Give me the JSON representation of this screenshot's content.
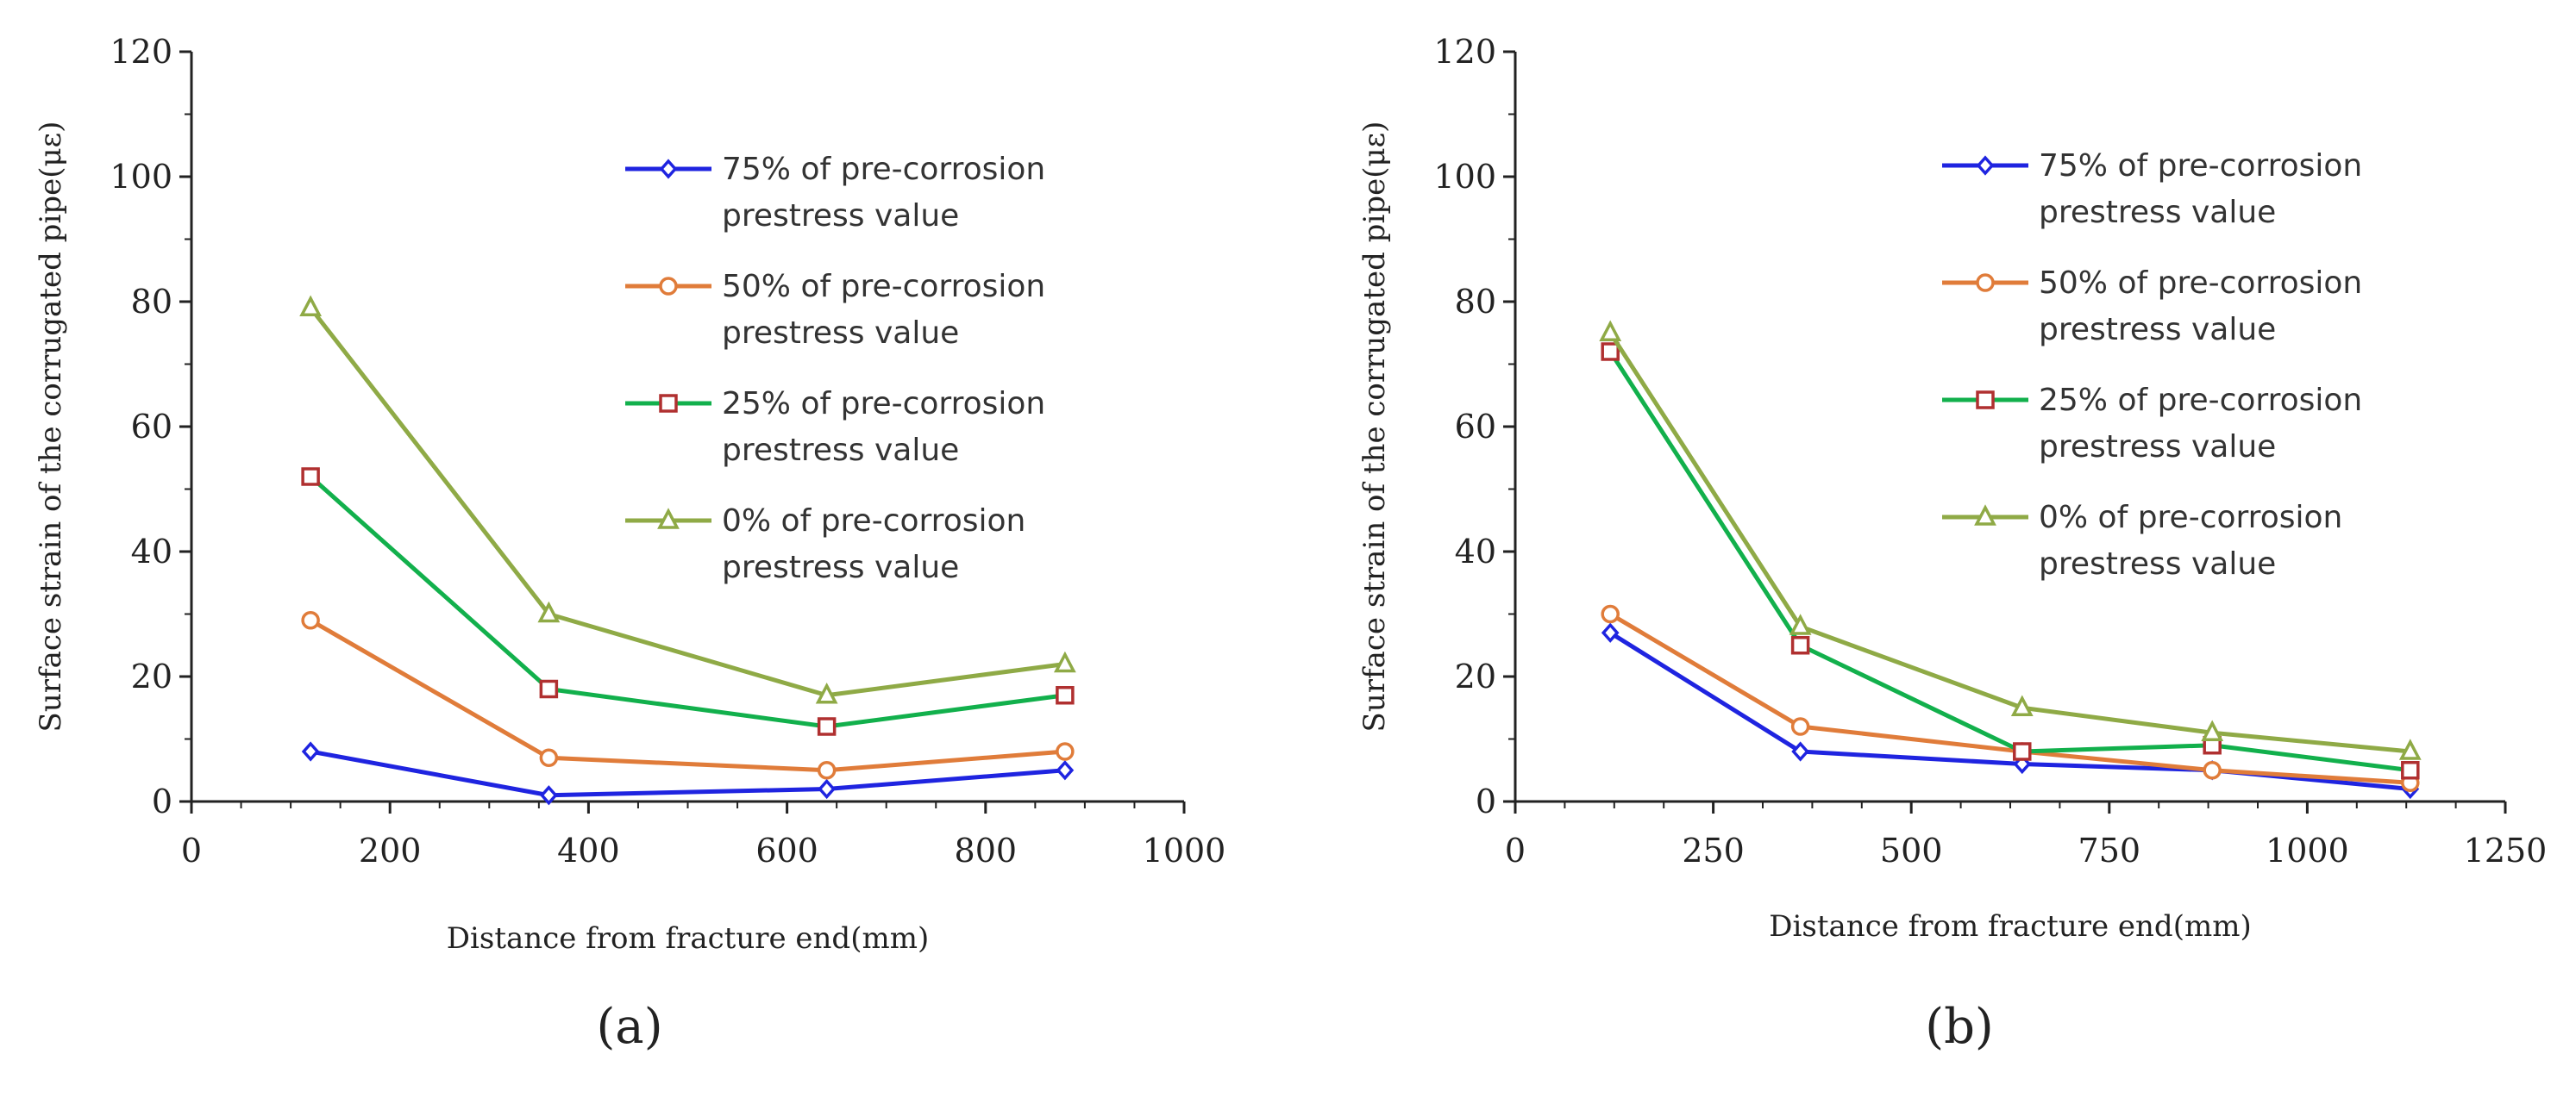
{
  "figure": {
    "caption_a": "(a)",
    "caption_b": "(b)"
  },
  "chart_data": [
    {
      "type": "line",
      "panel": "a",
      "caption": "(a)",
      "xlabel": "Distance from fracture end(mm)",
      "ylabel": "Surface strain of the corrugated pipe(με)",
      "xlim": [
        0,
        1000
      ],
      "ylim": [
        0,
        120
      ],
      "xticks": [
        0,
        200,
        400,
        600,
        800,
        1000
      ],
      "yticks": [
        0,
        20,
        40,
        60,
        80,
        100,
        120
      ],
      "x": [
        120,
        360,
        640,
        880
      ],
      "legend_position": "upper-right",
      "series": [
        {
          "name": "75% of pre-corrosion prestress value",
          "name_line1": "75% of pre-corrosion",
          "name_line2": "prestress value",
          "color": "#1f24e0",
          "marker": "diamond",
          "values": [
            8,
            1,
            2,
            5
          ]
        },
        {
          "name": "50% of pre-corrosion prestress value",
          "name_line1": "50% of pre-corrosion",
          "name_line2": "prestress value",
          "color": "#e07c3a",
          "marker": "circle",
          "values": [
            29,
            7,
            5,
            8
          ]
        },
        {
          "name": "25% of pre-corrosion prestress value",
          "name_line1": "25% of pre-corrosion",
          "name_line2": "prestress value",
          "color": "#12b04c",
          "marker_color": "#b03030",
          "marker": "square",
          "values": [
            52,
            18,
            12,
            17
          ]
        },
        {
          "name": "0% of pre-corrosion prestress value",
          "name_line1": "0% of pre-corrosion",
          "name_line2": "prestress value",
          "color": "#8faa46",
          "marker": "triangle",
          "values": [
            79,
            30,
            17,
            22
          ]
        }
      ]
    },
    {
      "type": "line",
      "panel": "b",
      "caption": "(b)",
      "xlabel": "Distance from fracture end(mm)",
      "ylabel": "Surface strain of the corrugated pipe(με)",
      "xlim": [
        0,
        1250
      ],
      "ylim": [
        0,
        120
      ],
      "xticks": [
        0,
        250,
        500,
        750,
        1000,
        1250
      ],
      "yticks": [
        0,
        20,
        40,
        60,
        80,
        100,
        120
      ],
      "x": [
        120,
        360,
        640,
        880,
        1130
      ],
      "legend_position": "upper-right",
      "series": [
        {
          "name": "75% of pre-corrosion prestress value",
          "name_line1": "75% of pre-corrosion",
          "name_line2": "prestress value",
          "color": "#1f24e0",
          "marker": "diamond",
          "values": [
            27,
            8,
            6,
            5,
            2
          ]
        },
        {
          "name": "50% of pre-corrosion prestress value",
          "name_line1": "50% of pre-corrosion",
          "name_line2": "prestress value",
          "color": "#e07c3a",
          "marker": "circle",
          "values": [
            30,
            12,
            8,
            5,
            3
          ]
        },
        {
          "name": "25% of pre-corrosion prestress value",
          "name_line1": "25% of pre-corrosion",
          "name_line2": "prestress value",
          "color": "#12b04c",
          "marker_color": "#b03030",
          "marker": "square",
          "values": [
            72,
            25,
            8,
            9,
            5
          ]
        },
        {
          "name": "0% of pre-corrosion prestress value",
          "name_line1": "0% of pre-corrosion",
          "name_line2": "prestress value",
          "color": "#8faa46",
          "marker": "triangle",
          "values": [
            75,
            28,
            15,
            11,
            8
          ]
        }
      ]
    }
  ]
}
